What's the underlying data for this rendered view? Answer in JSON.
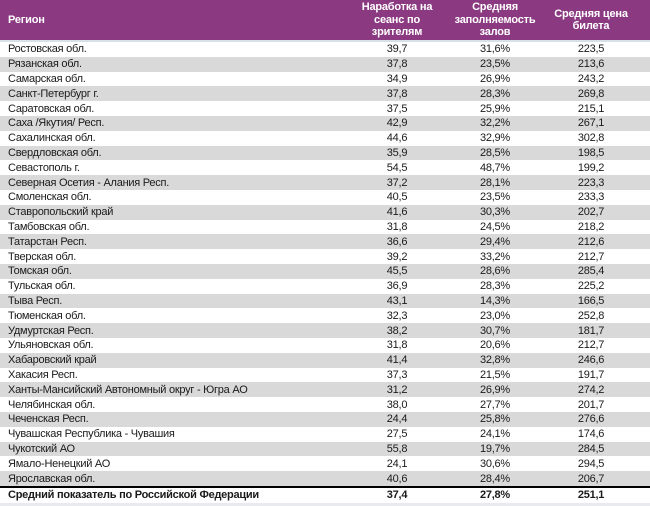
{
  "table": {
    "columns": [
      {
        "key": "region",
        "label": "Регион"
      },
      {
        "key": "sessions",
        "label": "Наработка на сеанс по зрителям"
      },
      {
        "key": "occupancy",
        "label": "Средняя заполняемость залов"
      },
      {
        "key": "price",
        "label": "Средняя цена билета"
      }
    ],
    "rows": [
      {
        "region": "Ростовская обл.",
        "sessions": "39,7",
        "occupancy": "31,6%",
        "price": "223,5"
      },
      {
        "region": "Рязанская обл.",
        "sessions": "37,8",
        "occupancy": "23,5%",
        "price": "213,6"
      },
      {
        "region": "Самарская обл.",
        "sessions": "34,9",
        "occupancy": "26,9%",
        "price": "243,2"
      },
      {
        "region": "Санкт-Петербург г.",
        "sessions": "37,8",
        "occupancy": "28,3%",
        "price": "269,8"
      },
      {
        "region": "Саратовская обл.",
        "sessions": "37,5",
        "occupancy": "25,9%",
        "price": "215,1"
      },
      {
        "region": "Саха /Якутия/ Респ.",
        "sessions": "42,9",
        "occupancy": "32,2%",
        "price": "267,1"
      },
      {
        "region": "Сахалинская обл.",
        "sessions": "44,6",
        "occupancy": "32,9%",
        "price": "302,8"
      },
      {
        "region": "Свердловская обл.",
        "sessions": "35,9",
        "occupancy": "28,5%",
        "price": "198,5"
      },
      {
        "region": "Севастополь г.",
        "sessions": "54,5",
        "occupancy": "48,7%",
        "price": "199,2"
      },
      {
        "region": "Северная Осетия - Алания Респ.",
        "sessions": "37,2",
        "occupancy": "28,1%",
        "price": "223,3"
      },
      {
        "region": "Смоленская обл.",
        "sessions": "40,5",
        "occupancy": "23,5%",
        "price": "233,3"
      },
      {
        "region": "Ставропольский край",
        "sessions": "41,6",
        "occupancy": "30,3%",
        "price": "202,7"
      },
      {
        "region": "Тамбовская обл.",
        "sessions": "31,8",
        "occupancy": "24,5%",
        "price": "218,2"
      },
      {
        "region": "Татарстан Респ.",
        "sessions": "36,6",
        "occupancy": "29,4%",
        "price": "212,6"
      },
      {
        "region": "Тверская обл.",
        "sessions": "39,2",
        "occupancy": "33,2%",
        "price": "212,7"
      },
      {
        "region": "Томская обл.",
        "sessions": "45,5",
        "occupancy": "28,6%",
        "price": "285,4"
      },
      {
        "region": "Тульская обл.",
        "sessions": "36,9",
        "occupancy": "28,3%",
        "price": "225,2"
      },
      {
        "region": "Тыва Респ.",
        "sessions": "43,1",
        "occupancy": "14,3%",
        "price": "166,5"
      },
      {
        "region": "Тюменская обл.",
        "sessions": "32,3",
        "occupancy": "23,0%",
        "price": "252,8"
      },
      {
        "region": "Удмуртская Респ.",
        "sessions": "38,2",
        "occupancy": "30,7%",
        "price": "181,7"
      },
      {
        "region": "Ульяновская обл.",
        "sessions": "31,8",
        "occupancy": "20,6%",
        "price": "212,7"
      },
      {
        "region": "Хабаровский край",
        "sessions": "41,4",
        "occupancy": "32,8%",
        "price": "246,6"
      },
      {
        "region": "Хакасия Респ.",
        "sessions": "37,3",
        "occupancy": "21,5%",
        "price": "191,7"
      },
      {
        "region": "Ханты-Мансийский Автономный округ - Югра АО",
        "sessions": "31,2",
        "occupancy": "26,9%",
        "price": "274,2"
      },
      {
        "region": "Челябинская обл.",
        "sessions": "38,0",
        "occupancy": "27,7%",
        "price": "201,7"
      },
      {
        "region": "Чеченская Респ.",
        "sessions": "24,4",
        "occupancy": "25,8%",
        "price": "276,6"
      },
      {
        "region": "Чувашская Республика - Чувашия",
        "sessions": "27,5",
        "occupancy": "24,1%",
        "price": "174,6"
      },
      {
        "region": "Чукотский АО",
        "sessions": "55,8",
        "occupancy": "19,7%",
        "price": "284,5"
      },
      {
        "region": "Ямало-Ненецкий АО",
        "sessions": "24,1",
        "occupancy": "30,6%",
        "price": "294,5"
      },
      {
        "region": "Ярославская обл.",
        "sessions": "40,6",
        "occupancy": "28,4%",
        "price": "206,7"
      }
    ],
    "total_row": {
      "region": "Средний показатель по Российской Федерации",
      "sessions": "37,4",
      "occupancy": "27,8%",
      "price": "251,1"
    }
  },
  "colors": {
    "header-bg": "#8B3A82",
    "header-text": "#FFFFFF",
    "stripe": "#D9D9D9",
    "row-bg": "#FFFFFF",
    "text": "#1A1A1A",
    "total-border": "#000000",
    "footer-band": "#E8EAEF"
  }
}
